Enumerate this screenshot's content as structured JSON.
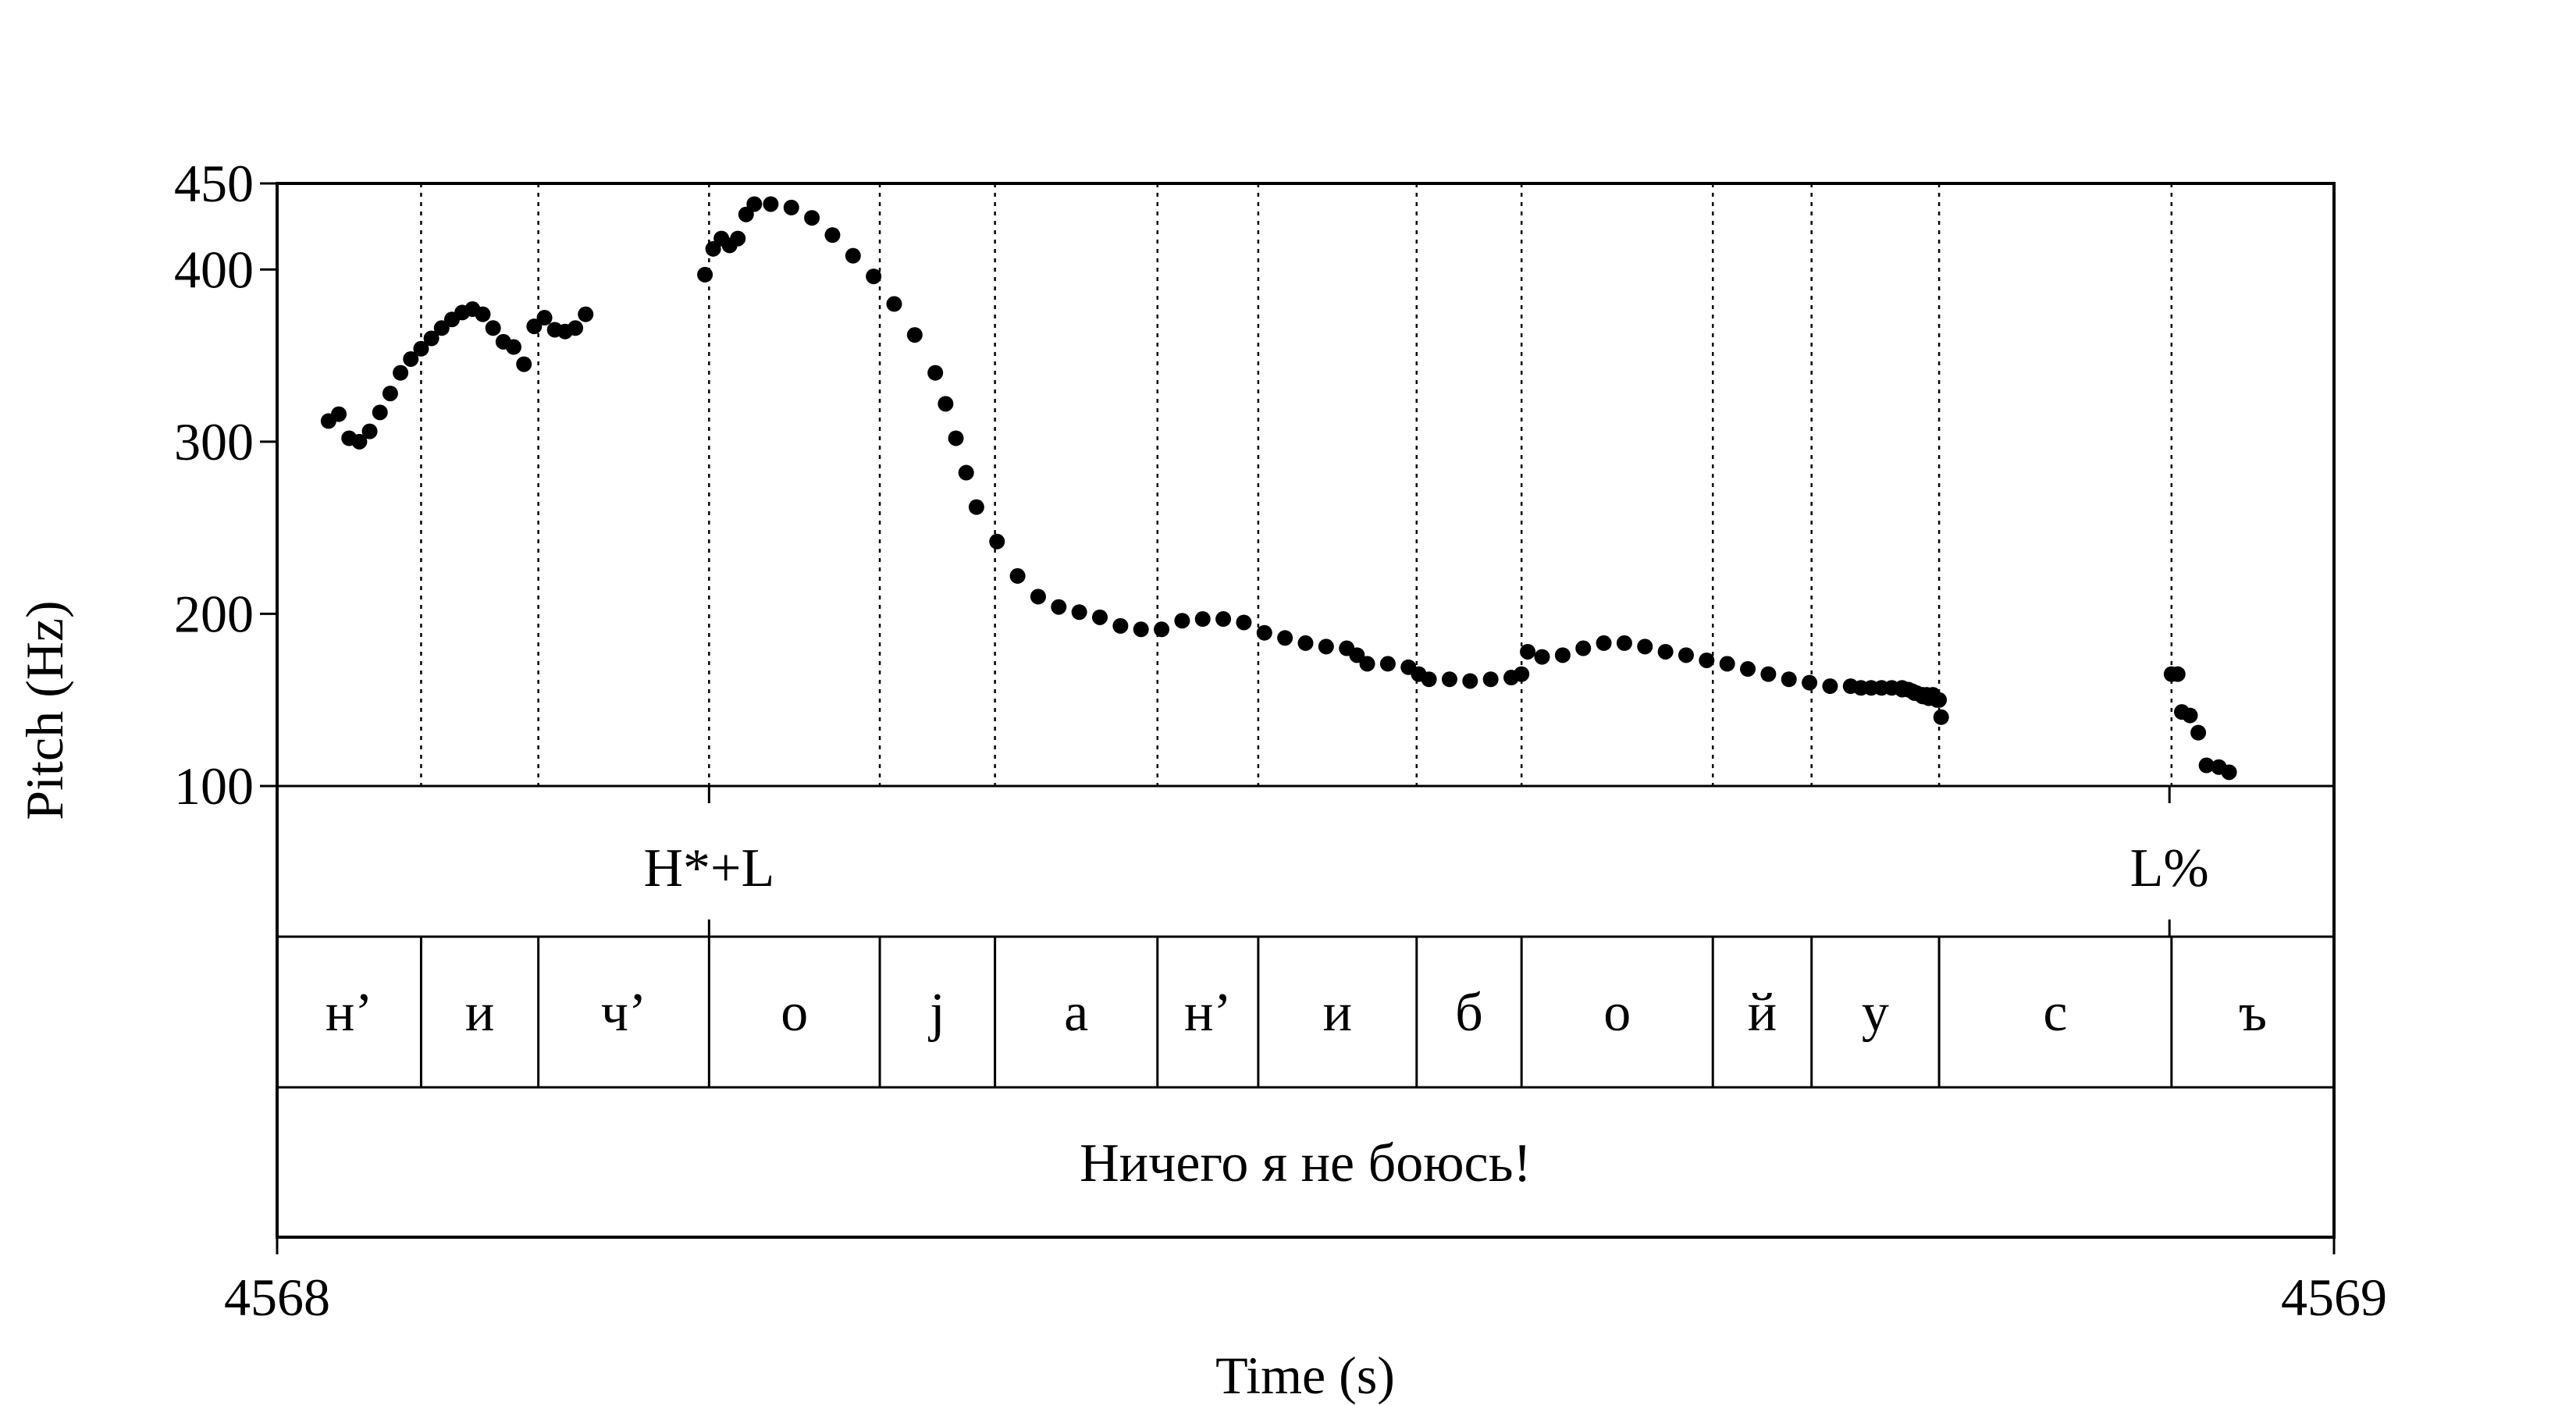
{
  "chart_data": {
    "type": "scatter",
    "ylabel": "Pitch (Hz)",
    "xlabel": "Time (s)",
    "xlim": [
      4568,
      4569
    ],
    "ylim": [
      100,
      450
    ],
    "xticks": [
      "4568",
      "4569"
    ],
    "yticks": [
      {
        "value": 100,
        "label": "100"
      },
      {
        "value": 200,
        "label": "200"
      },
      {
        "value": 300,
        "label": "300"
      },
      {
        "value": 400,
        "label": "400"
      },
      {
        "value": 450,
        "label": "450"
      }
    ],
    "grid": "dotted vertical lines at segment boundaries",
    "tones": [
      {
        "label": "H*+L",
        "t": 4568.21
      },
      {
        "label": "L%",
        "t": 4568.92
      }
    ],
    "segments": [
      {
        "label": "н’",
        "t0": 4568.0,
        "t1": 4568.07
      },
      {
        "label": "и",
        "t0": 4568.07,
        "t1": 4568.127
      },
      {
        "label": "ч’",
        "t0": 4568.127,
        "t1": 4568.21
      },
      {
        "label": "о",
        "t0": 4568.21,
        "t1": 4568.293
      },
      {
        "label": "j",
        "t0": 4568.293,
        "t1": 4568.349
      },
      {
        "label": "а",
        "t0": 4568.349,
        "t1": 4568.428
      },
      {
        "label": "н’",
        "t0": 4568.428,
        "t1": 4568.477
      },
      {
        "label": "и",
        "t0": 4568.477,
        "t1": 4568.554
      },
      {
        "label": "б",
        "t0": 4568.554,
        "t1": 4568.605
      },
      {
        "label": "о",
        "t0": 4568.605,
        "t1": 4568.698
      },
      {
        "label": "й",
        "t0": 4568.698,
        "t1": 4568.746
      },
      {
        "label": "у",
        "t0": 4568.746,
        "t1": 4568.808
      },
      {
        "label": "с",
        "t0": 4568.808,
        "t1": 4568.921
      },
      {
        "label": "ъ",
        "t0": 4568.921,
        "t1": 4569.0
      }
    ],
    "sentence": "Ничего я не боюсь!",
    "pitch_contour": [
      [
        4568.025,
        312
      ],
      [
        4568.03,
        316
      ],
      [
        4568.035,
        302
      ],
      [
        4568.04,
        300
      ],
      [
        4568.045,
        306
      ],
      [
        4568.05,
        317
      ],
      [
        4568.055,
        328
      ],
      [
        4568.06,
        340
      ],
      [
        4568.065,
        348
      ],
      [
        4568.07,
        354
      ],
      [
        4568.075,
        360
      ],
      [
        4568.08,
        366
      ],
      [
        4568.085,
        371
      ],
      [
        4568.09,
        375
      ],
      [
        4568.095,
        377
      ],
      [
        4568.1,
        374
      ],
      [
        4568.105,
        366
      ],
      [
        4568.11,
        358
      ],
      [
        4568.115,
        355
      ],
      [
        4568.12,
        345
      ],
      [
        4568.125,
        367
      ],
      [
        4568.13,
        372
      ],
      [
        4568.135,
        365
      ],
      [
        4568.14,
        364
      ],
      [
        4568.145,
        366
      ],
      [
        4568.15,
        374
      ],
      [
        4568.208,
        397
      ],
      [
        4568.212,
        412
      ],
      [
        4568.216,
        418
      ],
      [
        4568.22,
        414
      ],
      [
        4568.224,
        418
      ],
      [
        4568.228,
        432
      ],
      [
        4568.232,
        438
      ],
      [
        4568.24,
        438
      ],
      [
        4568.25,
        436
      ],
      [
        4568.26,
        430
      ],
      [
        4568.27,
        420
      ],
      [
        4568.28,
        408
      ],
      [
        4568.29,
        396
      ],
      [
        4568.3,
        380
      ],
      [
        4568.31,
        362
      ],
      [
        4568.32,
        340
      ],
      [
        4568.325,
        322
      ],
      [
        4568.33,
        302
      ],
      [
        4568.335,
        282
      ],
      [
        4568.34,
        262
      ],
      [
        4568.35,
        242
      ],
      [
        4568.36,
        222
      ],
      [
        4568.37,
        210
      ],
      [
        4568.38,
        204
      ],
      [
        4568.39,
        201
      ],
      [
        4568.4,
        198
      ],
      [
        4568.41,
        193
      ],
      [
        4568.42,
        191
      ],
      [
        4568.43,
        191
      ],
      [
        4568.44,
        196
      ],
      [
        4568.45,
        197
      ],
      [
        4568.46,
        197
      ],
      [
        4568.47,
        195
      ],
      [
        4568.48,
        189
      ],
      [
        4568.49,
        186
      ],
      [
        4568.5,
        183
      ],
      [
        4568.51,
        181
      ],
      [
        4568.52,
        180
      ],
      [
        4568.525,
        176
      ],
      [
        4568.53,
        171
      ],
      [
        4568.54,
        171
      ],
      [
        4568.55,
        169
      ],
      [
        4568.555,
        165
      ],
      [
        4568.56,
        162
      ],
      [
        4568.57,
        162
      ],
      [
        4568.58,
        161
      ],
      [
        4568.59,
        162
      ],
      [
        4568.6,
        163
      ],
      [
        4568.605,
        165
      ],
      [
        4568.608,
        178
      ],
      [
        4568.615,
        175
      ],
      [
        4568.625,
        176
      ],
      [
        4568.635,
        180
      ],
      [
        4568.645,
        183
      ],
      [
        4568.655,
        183
      ],
      [
        4568.665,
        181
      ],
      [
        4568.675,
        178
      ],
      [
        4568.685,
        176
      ],
      [
        4568.695,
        173
      ],
      [
        4568.705,
        171
      ],
      [
        4568.715,
        168
      ],
      [
        4568.725,
        165
      ],
      [
        4568.735,
        162
      ],
      [
        4568.745,
        160
      ],
      [
        4568.755,
        158
      ],
      [
        4568.765,
        158
      ],
      [
        4568.775,
        157
      ],
      [
        4568.785,
        157
      ],
      [
        4568.795,
        155
      ],
      [
        4568.805,
        153
      ],
      [
        4568.79,
        157
      ],
      [
        4568.8,
        153
      ],
      [
        4568.79,
        156
      ],
      [
        4568.793,
        156
      ],
      [
        4568.77,
        157
      ],
      [
        4568.78,
        157
      ],
      [
        4568.795,
        155
      ],
      [
        4568.796,
        154
      ],
      [
        4568.797,
        154
      ],
      [
        4568.799,
        153
      ],
      [
        4568.802,
        153
      ],
      [
        4568.804,
        152
      ],
      [
        4568.806,
        151
      ],
      [
        4568.808,
        150
      ],
      [
        4568.807,
        150
      ],
      [
        4568.803,
        151
      ],
      [
        4568.801,
        152
      ],
      [
        4568.8,
        152
      ],
      [
        4568.809,
        140
      ],
      [
        4568.921,
        165
      ],
      [
        4568.924,
        165
      ],
      [
        4568.926,
        143
      ],
      [
        4568.93,
        141
      ],
      [
        4568.934,
        131
      ],
      [
        4568.938,
        112
      ],
      [
        4568.944,
        111
      ],
      [
        4568.949,
        108
      ]
    ]
  }
}
